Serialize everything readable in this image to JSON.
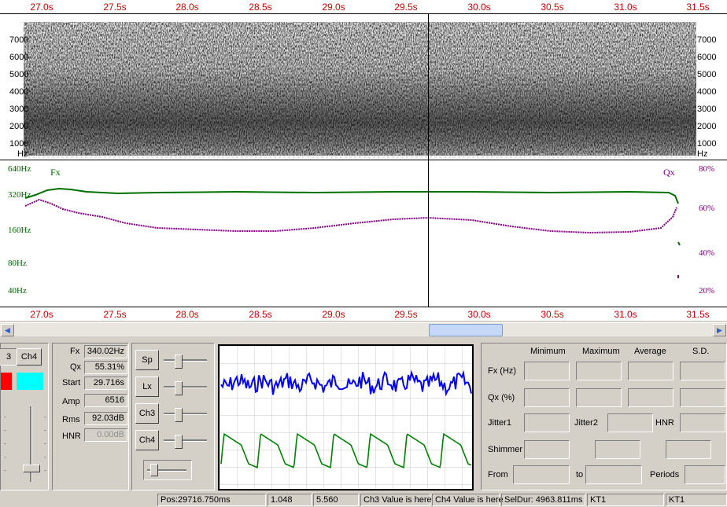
{
  "time_axis": {
    "ticks": [
      "27.0s",
      "27.5s",
      "28.0s",
      "28.5s",
      "29.0s",
      "29.5s",
      "30.0s",
      "30.5s",
      "31.0s",
      "31.5s"
    ]
  },
  "spectrogram": {
    "freq_ticks": [
      "7000",
      "6000",
      "5000",
      "4000",
      "3000",
      "2000",
      "1000",
      "Hz"
    ]
  },
  "pitch": {
    "fx_ticks": [
      "640Hz",
      "320Hz",
      "160Hz",
      "80Hz",
      "40Hz"
    ],
    "qx_ticks": [
      "80%",
      "60%",
      "40%",
      "20%"
    ],
    "fx_label": "Fx",
    "qx_label": "Qx",
    "fx_color": "#007000",
    "qx_color": "#800080"
  },
  "channels": {
    "ch3_label": "3",
    "ch4_label": "Ch4",
    "ch3_color": "#ff0000",
    "ch4_color": "#00ffff"
  },
  "measurements": {
    "fx_label": "Fx",
    "fx_value": "340.02Hz",
    "qx_label": "Qx",
    "qx_value": "55.31%",
    "start_label": "Start",
    "start_value": "29.716s",
    "amp_label": "Amp",
    "amp_value": "6516",
    "rms_label": "Rms",
    "rms_value": "92.03dB",
    "hnr_label": "HNR",
    "hnr_value": "0.00dB"
  },
  "mixer": {
    "sp_label": "Sp",
    "lx_label": "Lx",
    "ch3_label": "Ch3",
    "ch4_label": "Ch4"
  },
  "waveform": {
    "upper_color": "#0000ff",
    "lower_color": "#008000"
  },
  "stats": {
    "headers": [
      "Minimum",
      "Maximum",
      "Average",
      "S.D."
    ],
    "fx_label": "Fx (Hz)",
    "qx_label": "Qx (%)",
    "jitter1_label": "Jitter1",
    "jitter2_label": "Jitter2",
    "hnr_label": "HNR",
    "shimmer_label": "Shimmer",
    "from_label": "From",
    "to_label": "to",
    "periods_label": "Periods"
  },
  "status": {
    "pos": "Pos:29716.750ms",
    "val1": "1.048",
    "val2": "5.560",
    "ch3": "Ch3 Value is here",
    "ch4": "Ch4 Value is here",
    "seldur": "SelDur: 4963.811ms",
    "kt1a": "KT1",
    "kt1b": "KT1"
  }
}
